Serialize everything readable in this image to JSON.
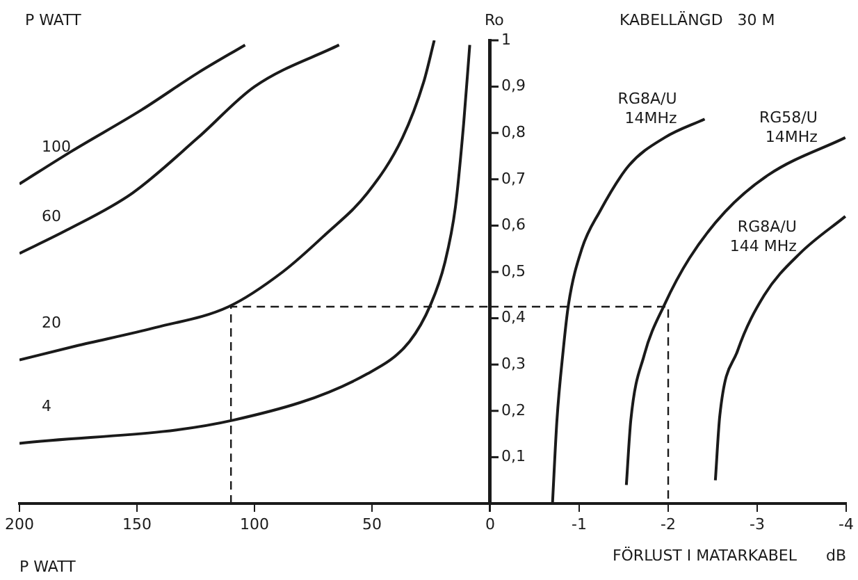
{
  "chart_data": [
    {
      "type": "line",
      "xlabel": "P WATT",
      "annotations": [
        "P WATT"
      ],
      "xlim": [
        200,
        0
      ],
      "xticks": [
        200,
        150,
        100,
        50,
        {
          "value": 0,
          "label": null
        }
      ],
      "ylim": [
        0,
        1
      ],
      "tick_labels": "x",
      "grid": false,
      "legend": false,
      "marker": "none",
      "series": [
        {
          "name": "100",
          "color": "#1a1a1a",
          "x": [
            200,
            178,
            148,
            124,
            104
          ],
          "values": [
            0.69,
            0.76,
            0.85,
            0.93,
            0.99
          ]
        },
        {
          "name": "60",
          "color": "#1a1a1a",
          "x": [
            200,
            180,
            152,
            124,
            100,
            64
          ],
          "values": [
            0.54,
            0.59,
            0.67,
            0.79,
            0.9,
            0.99
          ]
        },
        {
          "name": "20",
          "color": "#1a1a1a",
          "x": [
            200,
            176,
            142,
            111,
            88,
            70,
            52,
            37,
            28,
            23.5
          ],
          "values": [
            0.31,
            0.34,
            0.38,
            0.425,
            0.5,
            0.58,
            0.67,
            0.79,
            0.91,
            1.0
          ]
        },
        {
          "name": "4",
          "color": "#1a1a1a",
          "x": [
            200,
            109,
            52,
            34,
            25,
            19,
            14.5,
            11,
            8.4
          ],
          "values": [
            0.13,
            0.18,
            0.28,
            0.35,
            0.43,
            0.52,
            0.64,
            0.82,
            0.99
          ]
        },
        {
          "color": "#1a1a1a",
          "line_style": "dashed",
          "x": [
            110,
            110,
            0
          ],
          "values": [
            0,
            0.425,
            0.425
          ]
        }
      ]
    },
    {
      "type": "line",
      "title": "KABELLÄNGD   30 M",
      "ylabel": "Ro",
      "xlabel": "FÖRLUST I MATARKABEL      dB",
      "xlim": [
        0,
        -4
      ],
      "xticks": [
        0,
        -1,
        -2,
        -3,
        -4
      ],
      "ylim": [
        0,
        1
      ],
      "yticks": [
        {
          "value": 0,
          "label": null
        },
        {
          "value": 0.1,
          "label": "0,1"
        },
        {
          "value": 0.2,
          "label": "0,2"
        },
        {
          "value": 0.3,
          "label": "0,3"
        },
        {
          "value": 0.4,
          "label": "0,4"
        },
        {
          "value": 0.5,
          "label": "0,5"
        },
        {
          "value": 0.6,
          "label": "0,6"
        },
        {
          "value": 0.7,
          "label": "0,7"
        },
        {
          "value": 0.8,
          "label": "0,8"
        },
        {
          "value": 0.9,
          "label": "0,9"
        },
        1
      ],
      "grid": false,
      "legend": false,
      "marker": "none",
      "series": [
        {
          "name": "RG8A/U 14MHz",
          "color": "#1a1a1a",
          "x": [
            -0.7,
            -0.75,
            -0.82,
            -0.88,
            -1.03,
            -1.23,
            -1.56,
            -1.96,
            -2.41
          ],
          "values": [
            0,
            0.18,
            0.33,
            0.43,
            0.55,
            0.63,
            0.73,
            0.79,
            0.83
          ]
        },
        {
          "name": "RG58/U 14MHz",
          "color": "#1a1a1a",
          "x": [
            -1.53,
            -1.58,
            -1.73,
            -1.96,
            -2.24,
            -2.64,
            -3.13,
            -3.99
          ],
          "values": [
            0.04,
            0.18,
            0.32,
            0.43,
            0.53,
            0.63,
            0.71,
            0.79
          ]
        },
        {
          "name": "RG8A/U 144 MHz",
          "color": "#1a1a1a",
          "x": [
            -2.53,
            -2.58,
            -2.78,
            -3.08,
            -3.48,
            -3.99
          ],
          "values": [
            0.05,
            0.19,
            0.33,
            0.45,
            0.54,
            0.62
          ]
        },
        {
          "color": "#1a1a1a",
          "line_style": "dashed",
          "x": [
            0,
            -2,
            -2
          ],
          "values": [
            0.425,
            0.425,
            0
          ]
        }
      ]
    }
  ]
}
